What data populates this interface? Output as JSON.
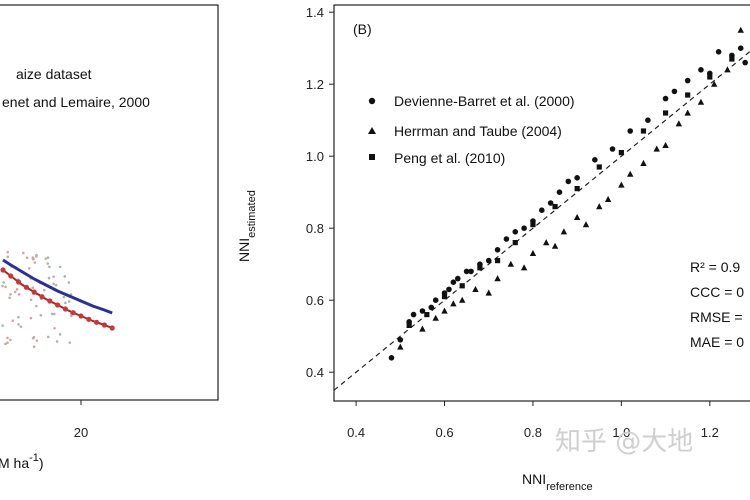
{
  "watermark": "知乎 @大地",
  "chart_data": [
    {
      "panel": "A",
      "type": "scatter",
      "visible_legend": [
        "aize dataset",
        "enet and Lemaire, 2000"
      ],
      "x_ticks": [
        "20"
      ],
      "xlabel_fragment": "M ha",
      "xlabel_superscript": "-1",
      "xlabel_close": ")",
      "curves": [
        {
          "name": "blue curve",
          "color": "#2b2f9a",
          "x": [
            0,
            2,
            5,
            8,
            11,
            14,
            17,
            20,
            23,
            26,
            28
          ],
          "y": [
            0.44,
            0.435,
            0.428,
            0.421,
            0.415,
            0.409,
            0.404,
            0.399,
            0.394,
            0.39,
            0.387
          ]
        },
        {
          "name": "red dotted curve",
          "color": "#b02020",
          "x": [
            0,
            2,
            5,
            8,
            11,
            14,
            17,
            20,
            23,
            26,
            28
          ],
          "y": [
            0.43,
            0.424,
            0.415,
            0.408,
            0.401,
            0.395,
            0.389,
            0.384,
            0.379,
            0.375,
            0.372
          ]
        }
      ]
    },
    {
      "panel": "B",
      "label": "(B)",
      "type": "scatter",
      "xlabel": "NNI",
      "xlabel_sub": "reference",
      "ylabel": "NNI",
      "ylabel_sub": "estimated",
      "xlim": [
        0.35,
        1.3
      ],
      "ylim": [
        0.32,
        1.42
      ],
      "x_ticks": [
        "0.4",
        "0.6",
        "0.8",
        "1.0",
        "1.2"
      ],
      "y_ticks": [
        "0.4",
        "0.6",
        "0.8",
        "1.0",
        "1.2",
        "1.4"
      ],
      "legend": [
        {
          "name": "Devienne-Barret et al. (2000)",
          "marker": "circle"
        },
        {
          "name": "Herrman and Taube (2004)",
          "marker": "triangle"
        },
        {
          "name": "Peng et al. (2010)",
          "marker": "square"
        }
      ],
      "stats": [
        "R² = 0.9",
        "CCC = 0",
        "RMSE =",
        "MAE = 0"
      ],
      "reference_line": {
        "style": "dashed",
        "x": [
          0.35,
          1.3
        ],
        "y": [
          0.35,
          1.3
        ]
      },
      "series": [
        {
          "name": "Devienne-Barret et al. (2000)",
          "marker": "circle",
          "x": [
            0.48,
            0.5,
            0.52,
            0.53,
            0.55,
            0.57,
            0.58,
            0.6,
            0.61,
            0.62,
            0.63,
            0.65,
            0.66,
            0.68,
            0.7,
            0.72,
            0.74,
            0.76,
            0.78,
            0.8,
            0.82,
            0.84,
            0.86,
            0.88,
            0.9,
            0.94,
            0.98,
            1.02,
            1.06,
            1.1,
            1.12,
            1.15,
            1.18,
            1.2,
            1.22,
            1.25,
            1.27,
            1.28
          ],
          "y": [
            0.44,
            0.49,
            0.54,
            0.56,
            0.57,
            0.58,
            0.6,
            0.62,
            0.63,
            0.65,
            0.66,
            0.68,
            0.68,
            0.7,
            0.71,
            0.74,
            0.77,
            0.79,
            0.8,
            0.82,
            0.85,
            0.87,
            0.9,
            0.93,
            0.94,
            0.99,
            1.02,
            1.07,
            1.1,
            1.16,
            1.18,
            1.21,
            1.24,
            1.23,
            1.29,
            1.28,
            1.3,
            1.26
          ]
        },
        {
          "name": "Herrman and Taube (2004)",
          "marker": "triangle",
          "x": [
            0.5,
            0.55,
            0.58,
            0.6,
            0.62,
            0.64,
            0.67,
            0.7,
            0.72,
            0.75,
            0.78,
            0.8,
            0.83,
            0.85,
            0.87,
            0.9,
            0.92,
            0.95,
            0.97,
            1.0,
            1.02,
            1.05,
            1.08,
            1.1,
            1.13,
            1.15,
            1.18,
            1.21,
            1.24,
            1.27
          ],
          "y": [
            0.47,
            0.52,
            0.55,
            0.57,
            0.59,
            0.6,
            0.63,
            0.62,
            0.66,
            0.7,
            0.69,
            0.73,
            0.76,
            0.75,
            0.79,
            0.83,
            0.81,
            0.86,
            0.88,
            0.92,
            0.95,
            0.98,
            1.02,
            1.03,
            1.09,
            1.12,
            1.15,
            1.2,
            1.24,
            1.35
          ]
        },
        {
          "name": "Peng et al. (2010)",
          "marker": "square",
          "x": [
            0.52,
            0.56,
            0.6,
            0.64,
            0.68,
            0.72,
            0.76,
            0.8,
            0.85,
            0.9,
            0.95,
            1.0,
            1.05,
            1.1,
            1.15,
            1.2,
            1.25
          ],
          "y": [
            0.53,
            0.56,
            0.61,
            0.64,
            0.69,
            0.71,
            0.76,
            0.81,
            0.86,
            0.91,
            0.97,
            1.01,
            1.07,
            1.12,
            1.17,
            1.22,
            1.27
          ]
        }
      ]
    }
  ]
}
